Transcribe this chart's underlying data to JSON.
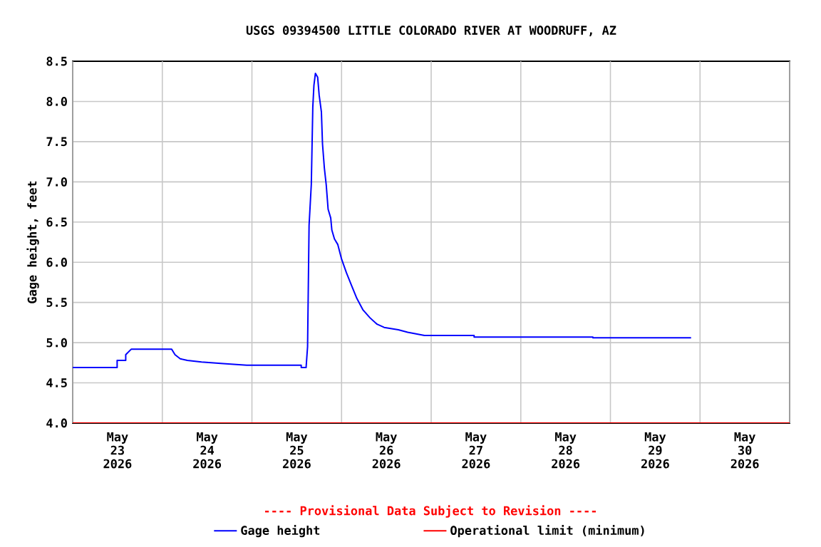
{
  "chart_data": {
    "type": "line",
    "title": "USGS 09394500 LITTLE COLORADO RIVER AT WOODRUFF, AZ",
    "ylabel": "Gage height, feet",
    "annotations": [
      "---- Provisional Data Subject to Revision ----"
    ],
    "xlim": [
      "2026-05-23T00:00",
      "2026-05-31T00:00"
    ],
    "xticks": [
      {
        "value": "2026-05-23T00:00",
        "label": null
      },
      {
        "value": "2026-05-23T12:00",
        "label": "May 23 2026"
      },
      {
        "value": "2026-05-24T00:00",
        "label": null
      },
      {
        "value": "2026-05-24T12:00",
        "label": "May 24 2026"
      },
      {
        "value": "2026-05-25T00:00",
        "label": null
      },
      {
        "value": "2026-05-25T12:00",
        "label": "May 25 2026"
      },
      {
        "value": "2026-05-26T00:00",
        "label": null
      },
      {
        "value": "2026-05-26T12:00",
        "label": "May 26 2026"
      },
      {
        "value": "2026-05-27T00:00",
        "label": null
      },
      {
        "value": "2026-05-27T12:00",
        "label": "May 27 2026"
      },
      {
        "value": "2026-05-28T00:00",
        "label": null
      },
      {
        "value": "2026-05-28T12:00",
        "label": "May 28 2026"
      },
      {
        "value": "2026-05-29T00:00",
        "label": null
      },
      {
        "value": "2026-05-29T12:00",
        "label": "May 29 2026"
      },
      {
        "value": "2026-05-30T00:00",
        "label": null
      },
      {
        "value": "2026-05-30T12:00",
        "label": "May 30 2026"
      },
      {
        "value": "2026-05-31T00:00",
        "label": null
      }
    ],
    "ylim": [
      4.0,
      8.5
    ],
    "yticks": [
      {
        "value": 4.0,
        "label": "4.0"
      },
      4.5,
      {
        "value": 5.0,
        "label": "5.0"
      },
      5.5,
      {
        "value": 6.0,
        "label": "6.0"
      },
      6.5,
      {
        "value": 7.0,
        "label": "7.0"
      },
      7.5,
      {
        "value": 8.0,
        "label": "8.0"
      },
      8.5
    ],
    "grid": true,
    "legend": "bottom",
    "marker": "none",
    "line_style": "solid",
    "series": [
      {
        "name": "Gage height",
        "color": "#0000ff",
        "x": [
          "2026-05-23T00:00",
          "2026-05-23T11:54",
          "2026-05-23T11:54",
          "2026-05-23T14:12",
          "2026-05-23T14:12",
          "2026-05-23T15:42",
          "2026-05-24T02:30",
          "2026-05-24T03:24",
          "2026-05-24T04:48",
          "2026-05-24T06:42",
          "2026-05-24T10:30",
          "2026-05-24T16:18",
          "2026-05-24T22:36",
          "2026-05-25T13:12",
          "2026-05-25T13:12",
          "2026-05-25T14:30",
          "2026-05-25T14:54",
          "2026-05-25T15:18",
          "2026-05-25T15:54",
          "2026-05-25T16:18",
          "2026-05-25T16:36",
          "2026-05-25T17:00",
          "2026-05-25T17:36",
          "2026-05-25T18:00",
          "2026-05-25T18:36",
          "2026-05-25T18:54",
          "2026-05-25T19:24",
          "2026-05-25T19:54",
          "2026-05-25T20:24",
          "2026-05-25T21:06",
          "2026-05-25T21:24",
          "2026-05-25T22:06",
          "2026-05-25T23:00",
          "2026-05-26T00:00",
          "2026-05-26T01:18",
          "2026-05-26T02:36",
          "2026-05-26T04:06",
          "2026-05-26T05:42",
          "2026-05-26T07:36",
          "2026-05-26T09:30",
          "2026-05-26T11:24",
          "2026-05-26T15:12",
          "2026-05-26T17:42",
          "2026-05-26T22:12",
          "2026-05-27T11:30",
          "2026-05-27T11:30",
          "2026-05-28T19:18",
          "2026-05-28T19:18",
          "2026-05-29T21:36"
        ],
        "values": [
          4.69,
          4.69,
          4.78,
          4.78,
          4.85,
          4.92,
          4.92,
          4.85,
          4.8,
          4.78,
          4.76,
          4.74,
          4.72,
          4.72,
          4.69,
          4.69,
          4.95,
          6.46,
          6.97,
          7.93,
          8.2,
          8.35,
          8.3,
          8.08,
          7.87,
          7.47,
          7.17,
          6.96,
          6.66,
          6.55,
          6.4,
          6.29,
          6.22,
          6.04,
          5.87,
          5.72,
          5.55,
          5.41,
          5.31,
          5.23,
          5.19,
          5.16,
          5.13,
          5.09,
          5.09,
          5.07,
          5.07,
          5.06,
          5.06
        ]
      },
      {
        "name": "Operational limit (minimum)",
        "color": "#ff0000",
        "x": [
          "2026-05-23T00:00",
          "2026-05-31T00:00"
        ],
        "values": [
          4.0,
          4.0
        ]
      }
    ]
  }
}
